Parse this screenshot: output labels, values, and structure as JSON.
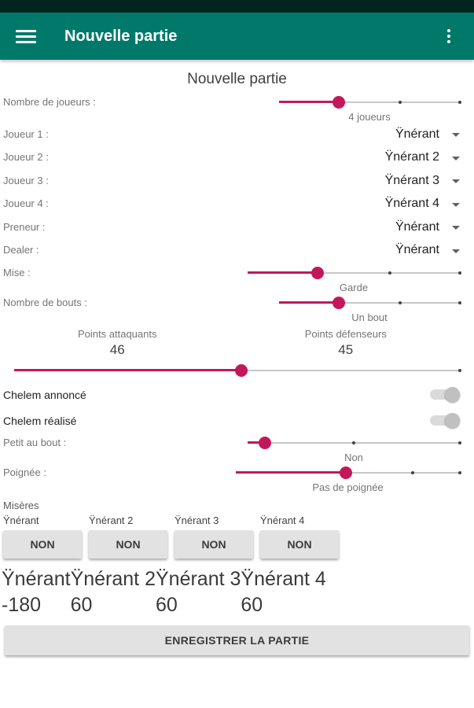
{
  "colors": {
    "accent": "#C2185B",
    "app_bar": "#00796B",
    "status_bar": "#00251F"
  },
  "app_bar": {
    "title": "Nouvelle partie"
  },
  "page": {
    "title": "Nouvelle partie"
  },
  "players_slider": {
    "label": "Nombre de joueurs :",
    "value": "4 joueurs",
    "percent": 33
  },
  "selects": [
    {
      "label": "Joueur 1 :",
      "value": "Ÿnérant"
    },
    {
      "label": "Joueur 2 :",
      "value": "Ÿnérant 2"
    },
    {
      "label": "Joueur 3 :",
      "value": "Ÿnérant 3"
    },
    {
      "label": "Joueur 4 :",
      "value": "Ÿnérant 4"
    },
    {
      "label": "Preneur :",
      "value": "Ÿnérant"
    },
    {
      "label": "Dealer :",
      "value": "Ÿnérant"
    }
  ],
  "mise_slider": {
    "label": "Mise :",
    "value": "Garde",
    "percent": 33
  },
  "bouts_slider": {
    "label": "Nombre de bouts :",
    "value": "Un bout",
    "percent": 33
  },
  "points": {
    "attack_label": "Points attaquants",
    "attack_value": "46",
    "defense_label": "Points défenseurs",
    "defense_value": "45",
    "slider_percent": 51
  },
  "chelem_annonce": {
    "label": "Chelem annoncé",
    "state": "off"
  },
  "chelem_realise": {
    "label": "Chelem réalisé",
    "state": "off"
  },
  "petit_slider": {
    "label": "Petit au bout :",
    "value": "Non",
    "percent": 8
  },
  "poignee_slider": {
    "label": "Poignée :",
    "value": "Pas de poignée",
    "percent": 49
  },
  "miseres": {
    "label": "Misères",
    "players": [
      {
        "name": "Ÿnérant",
        "button": "NON"
      },
      {
        "name": "Ÿnérant 2",
        "button": "NON"
      },
      {
        "name": "Ÿnérant 3",
        "button": "NON"
      },
      {
        "name": "Ÿnérant 4",
        "button": "NON"
      }
    ]
  },
  "scores": {
    "names": [
      "Ÿnérant",
      "Ÿnérant 2",
      "Ÿnérant 3",
      "Ÿnérant 4"
    ],
    "values": [
      "-180",
      "60",
      "60",
      "60"
    ]
  },
  "submit_button": "ENREGISTRER LA PARTIE"
}
